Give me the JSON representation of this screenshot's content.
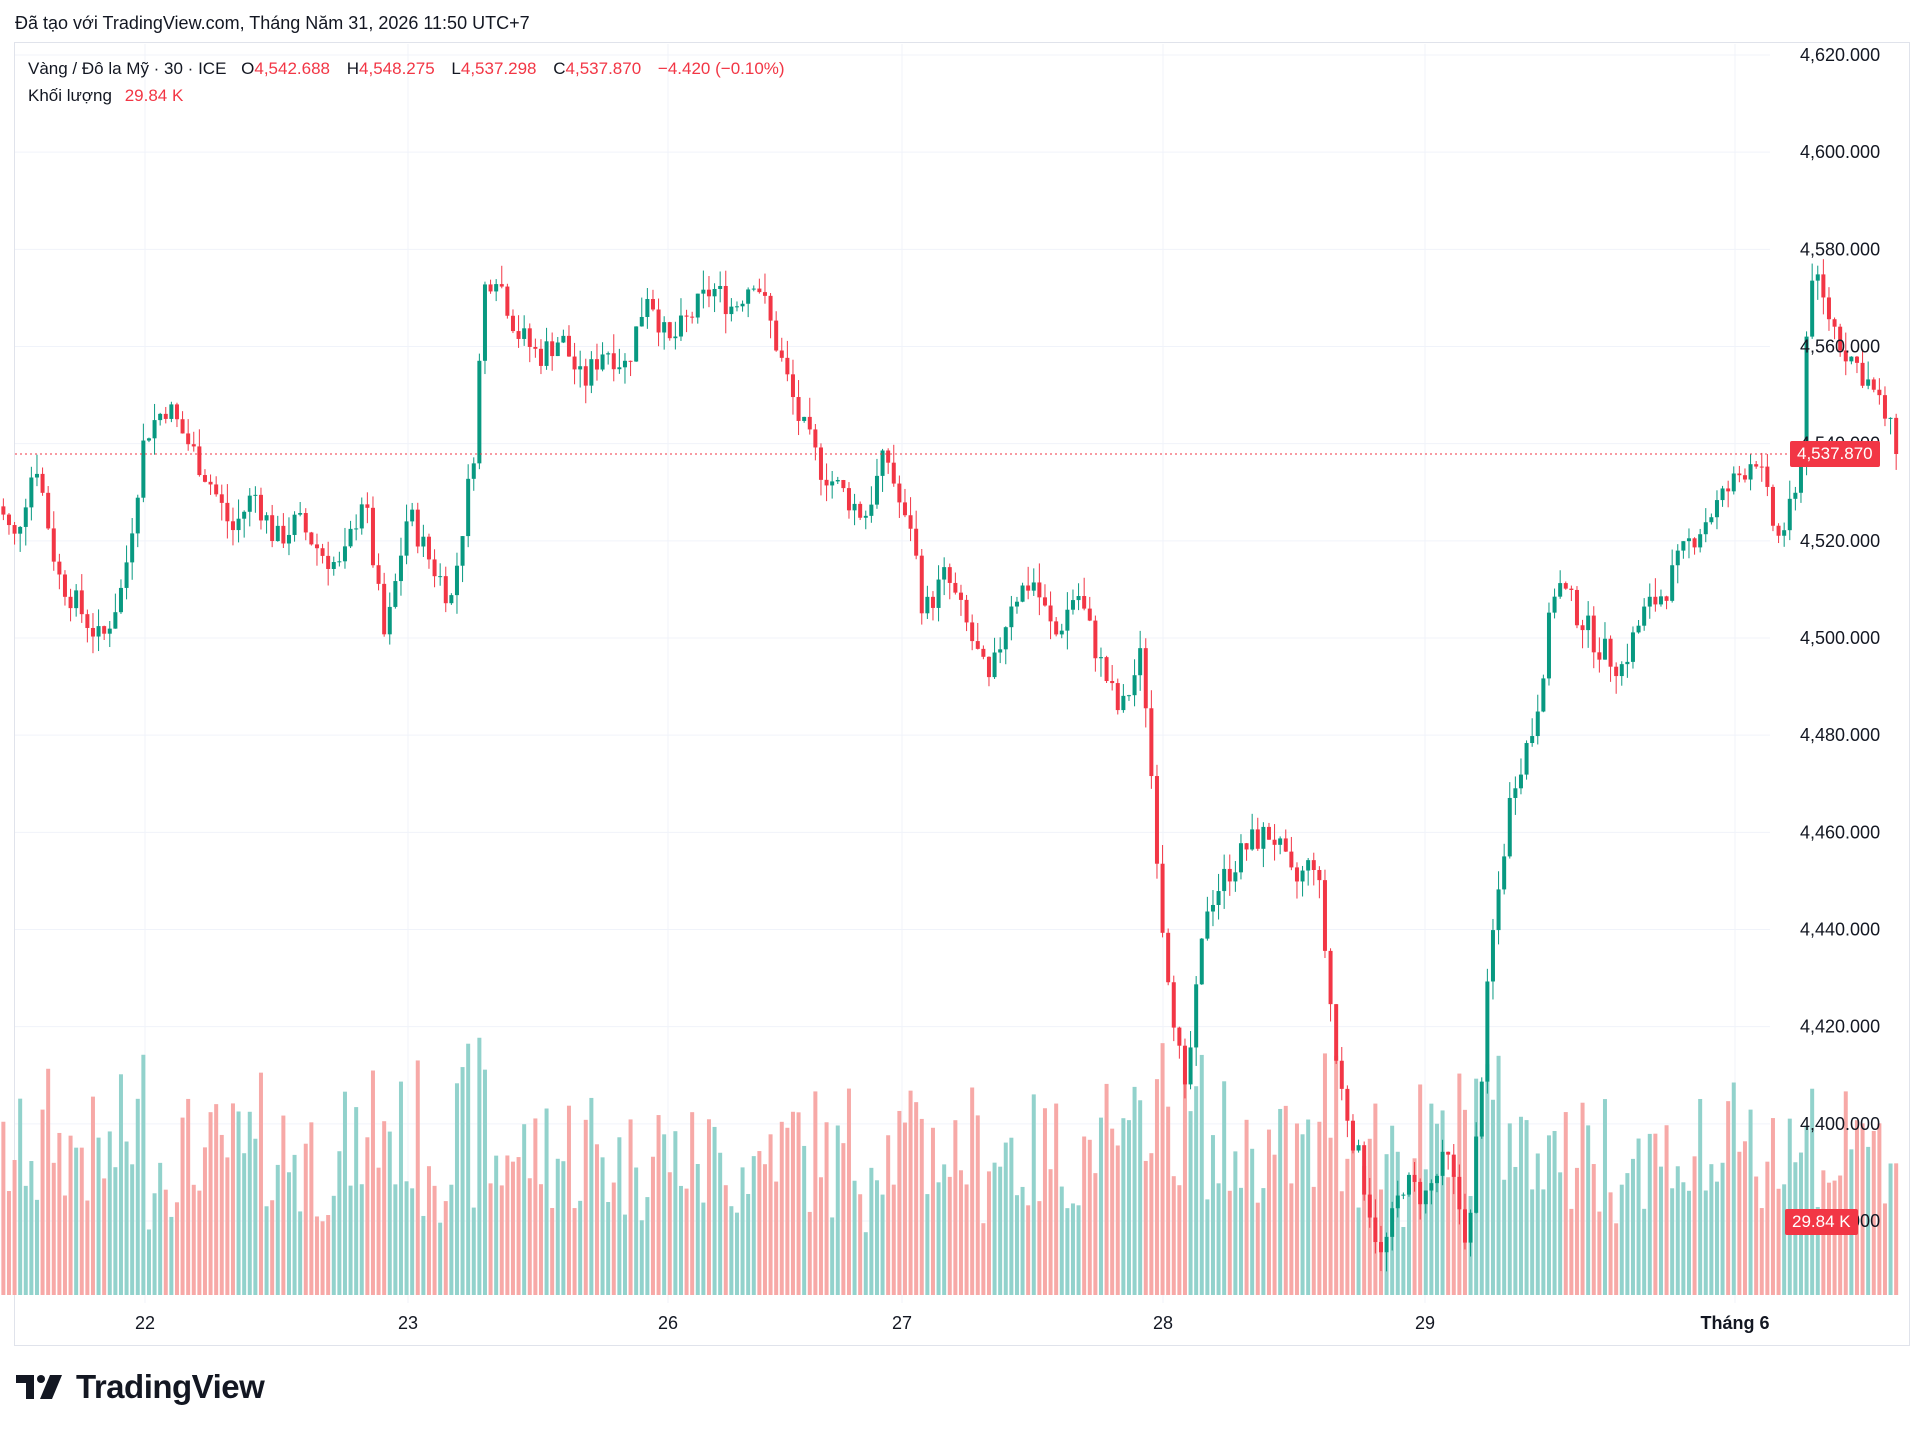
{
  "header": {
    "caption": "Đã tạo với TradingView.com, Tháng Năm 31, 2026 11:50 UTC+7"
  },
  "legend": {
    "symbol": "Vàng / Đô la Mỹ · 30 · ICE",
    "open_label": "O",
    "open": "4,542.688",
    "high_label": "H",
    "high": "4,548.275",
    "low_label": "L",
    "low": "4,537.298",
    "close_label": "C",
    "close": "4,537.870",
    "change": "−4.420 (−0.10%)",
    "volume_label": "Khối lượng",
    "volume": "29.84 K"
  },
  "colors": {
    "up": "#089981",
    "down": "#f23645",
    "up_volume": "#92d2cc",
    "down_volume": "#f7a9a7",
    "grid": "#f0f3fa"
  },
  "price_tag": "4,537.870",
  "volume_tag": "29.84 K",
  "brand": {
    "name": "TradingView",
    "icon": "tradingview-logo-icon"
  },
  "chart_data": {
    "type": "candlestick",
    "title": "Vàng / Đô la Mỹ · 30 · ICE",
    "y_ticks": [
      "4,620.000",
      "4,600.000",
      "4,580.000",
      "4,560.000",
      "4,540.000",
      "4,520.000",
      "4,500.000",
      "4,480.000",
      "4,460.000",
      "4,440.000",
      "4,420.000",
      "4,400.000",
      "4,380.000"
    ],
    "ylim": [
      4370,
      4623
    ],
    "x_ticks": [
      "22",
      "23",
      "26",
      "27",
      "28",
      "29",
      "Tháng 6"
    ],
    "last_price": 4537.87,
    "last_volume": "29.84 K",
    "grid": true,
    "waypoints": [
      {
        "x": "21 10:00",
        "price": 4530
      },
      {
        "x": "21 12:00",
        "price": 4520
      },
      {
        "x": "21 14:00",
        "price": 4537
      },
      {
        "x": "21 16:00",
        "price": 4513
      },
      {
        "x": "21 18:00",
        "price": 4506
      },
      {
        "x": "21 20:00",
        "price": 4499
      },
      {
        "x": "21 22:00",
        "price": 4511
      },
      {
        "x": "22 00:00",
        "price": 4542
      },
      {
        "x": "22 02:00",
        "price": 4548
      },
      {
        "x": "22 04:00",
        "price": 4540
      },
      {
        "x": "22 06:00",
        "price": 4532
      },
      {
        "x": "22 08:00",
        "price": 4522
      },
      {
        "x": "22 10:00",
        "price": 4530
      },
      {
        "x": "22 12:00",
        "price": 4520
      },
      {
        "x": "22 14:00",
        "price": 4524
      },
      {
        "x": "22 16:00",
        "price": 4518
      },
      {
        "x": "22 18:00",
        "price": 4514
      },
      {
        "x": "22 20:00",
        "price": 4530
      },
      {
        "x": "22 22:00",
        "price": 4499
      },
      {
        "x": "23 00:00",
        "price": 4526
      },
      {
        "x": "23 02:00",
        "price": 4516
      },
      {
        "x": "23 04:00",
        "price": 4508
      },
      {
        "x": "23 06:00",
        "price": 4538
      },
      {
        "x": "23 07:00",
        "price": 4572
      },
      {
        "x": "23 08:00",
        "price": 4576
      },
      {
        "x": "23 10:00",
        "price": 4563
      },
      {
        "x": "23 12:00",
        "price": 4558
      },
      {
        "x": "23 14:00",
        "price": 4562
      },
      {
        "x": "23 16:00",
        "price": 4552
      },
      {
        "x": "23 18:00",
        "price": 4560
      },
      {
        "x": "23 20:00",
        "price": 4556
      },
      {
        "x": "23 22:00",
        "price": 4572
      },
      {
        "x": "26 00:00",
        "price": 4560
      },
      {
        "x": "26 02:00",
        "price": 4566
      },
      {
        "x": "26 04:00",
        "price": 4572
      },
      {
        "x": "26 06:00",
        "price": 4568
      },
      {
        "x": "26 08:00",
        "price": 4575
      },
      {
        "x": "26 10:00",
        "price": 4560
      },
      {
        "x": "26 12:00",
        "price": 4545
      },
      {
        "x": "26 14:00",
        "price": 4535
      },
      {
        "x": "26 16:00",
        "price": 4530
      },
      {
        "x": "26 18:00",
        "price": 4525
      },
      {
        "x": "26 20:00",
        "price": 4538
      },
      {
        "x": "26 22:00",
        "price": 4521
      },
      {
        "x": "27 00:00",
        "price": 4536
      },
      {
        "x": "27 02:00",
        "price": 4505
      },
      {
        "x": "27 04:00",
        "price": 4513
      },
      {
        "x": "27 06:00",
        "price": 4502
      },
      {
        "x": "27 08:00",
        "price": 4490
      },
      {
        "x": "27 10:00",
        "price": 4508
      },
      {
        "x": "27 12:00",
        "price": 4512
      },
      {
        "x": "27 14:00",
        "price": 4500
      },
      {
        "x": "27 16:00",
        "price": 4510
      },
      {
        "x": "27 18:00",
        "price": 4496
      },
      {
        "x": "27 20:00",
        "price": 4484
      },
      {
        "x": "27 22:00",
        "price": 4497
      },
      {
        "x": "28 00:00",
        "price": 4440
      },
      {
        "x": "28 02:00",
        "price": 4405
      },
      {
        "x": "28 04:00",
        "price": 4445
      },
      {
        "x": "28 06:00",
        "price": 4452
      },
      {
        "x": "28 08:00",
        "price": 4458
      },
      {
        "x": "28 10:00",
        "price": 4460
      },
      {
        "x": "28 12:00",
        "price": 4449
      },
      {
        "x": "28 14:00",
        "price": 4455
      },
      {
        "x": "28 16:00",
        "price": 4410
      },
      {
        "x": "28 18:00",
        "price": 4392
      },
      {
        "x": "28 20:00",
        "price": 4372
      },
      {
        "x": "28 22:00",
        "price": 4388
      },
      {
        "x": "29 00:00",
        "price": 4385
      },
      {
        "x": "29 02:00",
        "price": 4393
      },
      {
        "x": "29 04:00",
        "price": 4375
      },
      {
        "x": "29 06:00",
        "price": 4435
      },
      {
        "x": "29 08:00",
        "price": 4470
      },
      {
        "x": "29 10:00",
        "price": 4482
      },
      {
        "x": "29 12:00",
        "price": 4512
      },
      {
        "x": "29 14:00",
        "price": 4505
      },
      {
        "x": "29 16:00",
        "price": 4498
      },
      {
        "x": "29 18:00",
        "price": 4494
      },
      {
        "x": "29 20:00",
        "price": 4505
      },
      {
        "x": "29 22:00",
        "price": 4510
      },
      {
        "x": "30 00:00",
        "price": 4520
      },
      {
        "x": "30 02:00",
        "price": 4526
      },
      {
        "x": "30 04:00",
        "price": 4532
      },
      {
        "x": "30 06:00",
        "price": 4538
      },
      {
        "x": "30 08:00",
        "price": 4520
      },
      {
        "x": "30 10:00",
        "price": 4530
      },
      {
        "x": "30 11:00",
        "price": 4577
      },
      {
        "x": "30 12:00",
        "price": 4570
      },
      {
        "x": "30 14:00",
        "price": 4560
      },
      {
        "x": "30 16:00",
        "price": 4554
      },
      {
        "x": "30 18:00",
        "price": 4545
      },
      {
        "x": "30 19:00",
        "price": 4537.87
      }
    ]
  }
}
